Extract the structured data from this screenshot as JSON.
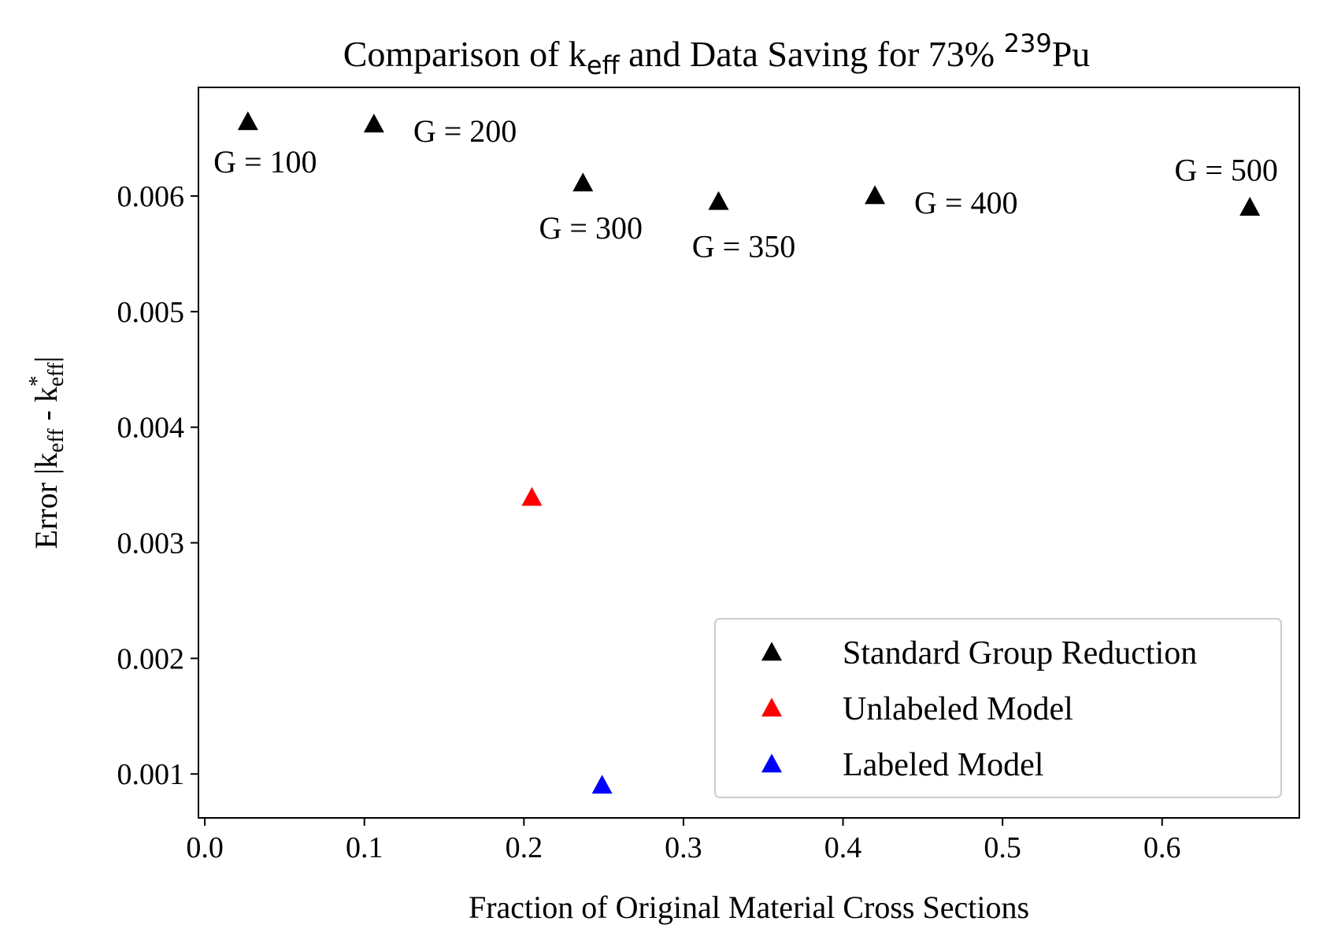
{
  "chart_data": {
    "type": "scatter",
    "title": {
      "prefix": "Comparison of k",
      "prefix_sub": "eff",
      "middle": " and Data Saving for 73% ",
      "sup": "239",
      "suffix": "Pu"
    },
    "xlabel": "Fraction of Original Material Cross Sections",
    "ylabel": {
      "prefix": "Error |k",
      "sub1": "eff",
      "mid": " - k",
      "sup2": "*",
      "sub2": "eff",
      "suffix": "|"
    },
    "xlim": [
      -0.004,
      0.686
    ],
    "ylim": [
      0.00062,
      0.00694
    ],
    "xticks": [
      0.0,
      0.1,
      0.2,
      0.3,
      0.4,
      0.5,
      0.6
    ],
    "xtick_labels": [
      "0.0",
      "0.1",
      "0.2",
      "0.3",
      "0.4",
      "0.5",
      "0.6"
    ],
    "yticks": [
      0.001,
      0.002,
      0.003,
      0.004,
      0.005,
      0.006
    ],
    "ytick_labels": [
      "0.001",
      "0.002",
      "0.003",
      "0.004",
      "0.005",
      "0.006"
    ],
    "marker": "triangle-up",
    "series": [
      {
        "name": "Standard Group Reduction",
        "color": "#000000",
        "points": [
          {
            "x": 0.027,
            "y": 0.00664,
            "label": "G = 100"
          },
          {
            "x": 0.106,
            "y": 0.00662,
            "label": "G = 200"
          },
          {
            "x": 0.237,
            "y": 0.00611,
            "label": "G = 300"
          },
          {
            "x": 0.322,
            "y": 0.00595,
            "label": "G = 350"
          },
          {
            "x": 0.42,
            "y": 0.006,
            "label": "G = 400"
          },
          {
            "x": 0.655,
            "y": 0.0059,
            "label": "G = 500"
          }
        ]
      },
      {
        "name": "Unlabeled Model",
        "color": "#ff0000",
        "points": [
          {
            "x": 0.205,
            "y": 0.00339
          }
        ]
      },
      {
        "name": "Labeled Model",
        "color": "#0000ff",
        "points": [
          {
            "x": 0.249,
            "y": 0.0009
          }
        ]
      }
    ],
    "legend": {
      "position": "lower-right",
      "entries": [
        "Standard Group Reduction",
        "Unlabeled Model",
        "Labeled Model"
      ]
    },
    "grid": false
  }
}
